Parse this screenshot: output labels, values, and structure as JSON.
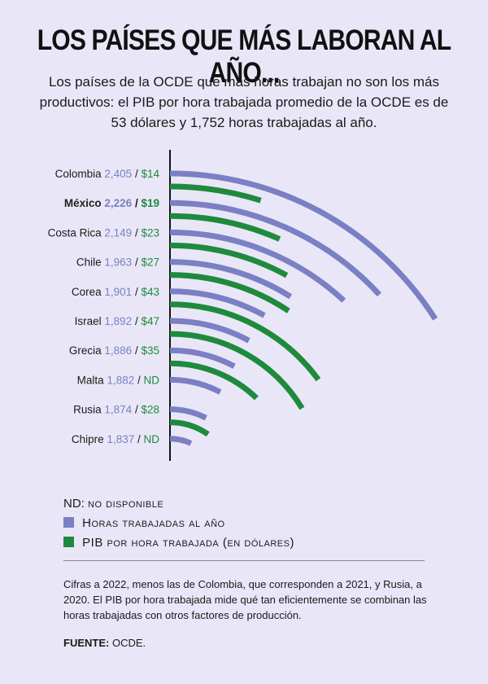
{
  "header": {
    "title": "LOS PAÍSES QUE MÁS LABORAN AL AÑO...",
    "subtitle": "Los países de la OCDE que más horas trabajan no son los más productivos: el PIB por hora trabajada promedio de la OCDE es de 53 dólares y 1,752 horas trabajadas al año."
  },
  "colors": {
    "hours": "#7b7fc4",
    "gdp": "#1f8a3c",
    "background": "#e9e7f7",
    "highlight_text": "#222222"
  },
  "chart_data": {
    "type": "bar",
    "layout": "radial-arcs",
    "categories": [
      "Colombia",
      "México",
      "Costa Rica",
      "Chile",
      "Corea",
      "Israel",
      "Grecia",
      "Malta",
      "Rusia",
      "Chipre"
    ],
    "highlight": "México",
    "separator": "/",
    "series": [
      {
        "name": "Horas trabajadas al año",
        "values": [
          2405,
          2226,
          2149,
          1963,
          1901,
          1892,
          1886,
          1882,
          1874,
          1837
        ],
        "labels": [
          "2,405",
          "2,226",
          "2,149",
          "1,963",
          "1,901",
          "1,892",
          "1,886",
          "1,882",
          "1,874",
          "1,837"
        ]
      },
      {
        "name": "PIB por hora trabajada (en dólares)",
        "values": [
          14,
          19,
          23,
          27,
          43,
          47,
          35,
          null,
          28,
          null
        ],
        "labels": [
          "$14",
          "$19",
          "$23",
          "$27",
          "$43",
          "$47",
          "$35",
          "ND",
          "$28",
          "ND"
        ]
      }
    ]
  },
  "legend": {
    "nd_key": "ND:",
    "nd_text": "no disponible",
    "hours_label": "Horas trabajadas al año",
    "gdp_label": "PIB por hora trabajada (en dólares)"
  },
  "footer": {
    "note": "Cifras a 2022, menos las de Colombia, que corresponden a 2021, y Rusia, a 2020. El PIB por hora trabajada mide qué tan eficientemente se combinan las horas trabajadas con otros factores de producción.",
    "source_label": "FUENTE:",
    "source_value": "OCDE."
  }
}
